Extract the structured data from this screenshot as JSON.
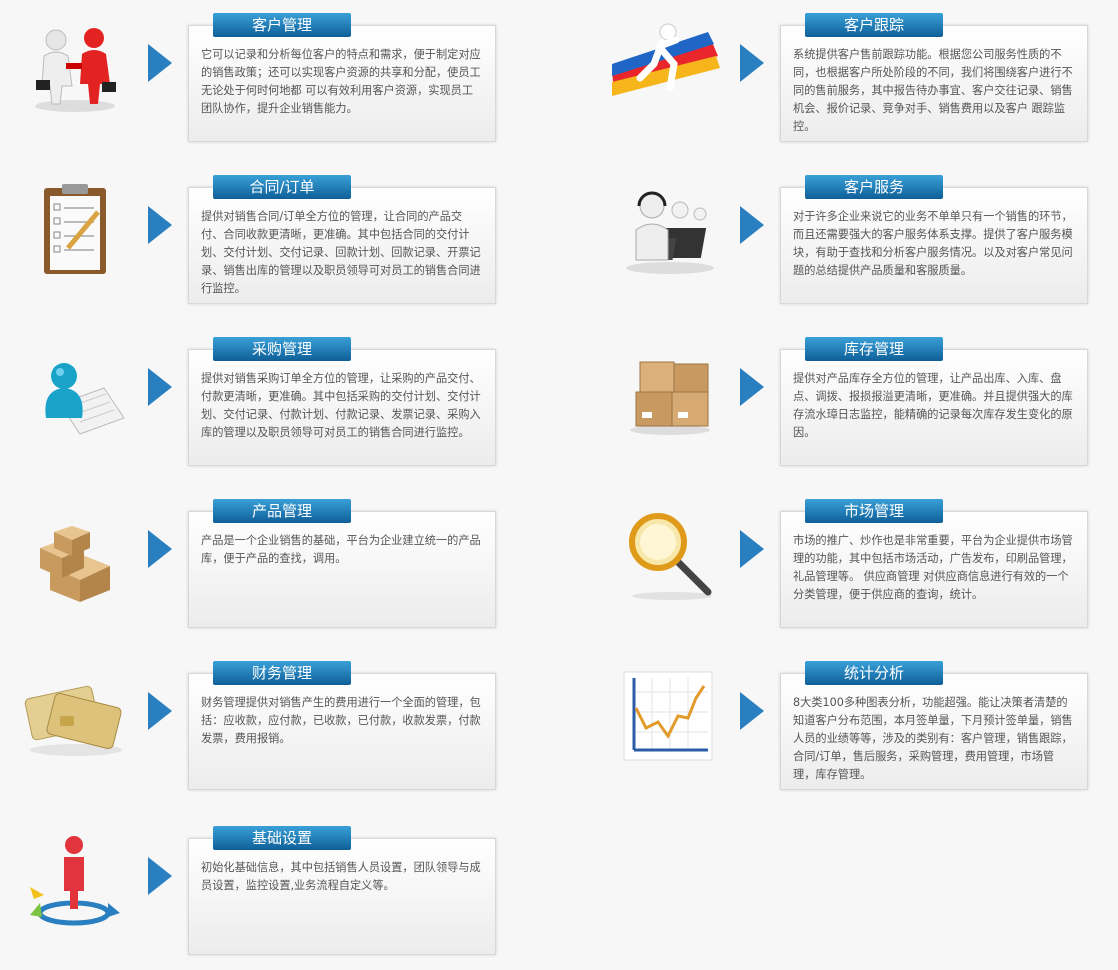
{
  "colors": {
    "accent": "#2a7fc0",
    "tab_top": "#3aa0d8",
    "tab_bottom": "#0f5f98",
    "text": "#555555"
  },
  "modules": [
    {
      "icon": "handshake-icon",
      "title": "客户管理",
      "desc": "它可以记录和分析每位客户的特点和需求，便于制定对应的销售政策；还可以实现客户资源的共享和分配，使员工无论处于何时何地都 可以有效利用客户资源，实现员工团队协作，提升企业销售能力。"
    },
    {
      "icon": "running-man-icon",
      "title": "客户跟踪",
      "desc": "系统提供客户售前跟踪功能。根据您公司服务性质的不同，也根据客户所处阶段的不同，我们将围绕客户进行不同的售前服务，其中报告待办事宜、客户交往记录、销售机会、报价记录、竞争对手、销售费用以及客户 跟踪监控。"
    },
    {
      "icon": "clipboard-icon",
      "title": "合同/订单",
      "desc": "提供对销售合同/订单全方位的管理，让合同的产品交付、合同收款更清晰，更准确。其中包括合同的交付计划、交付计划、交付记录、回款计划、回款记录、开票记录、销售出库的管理以及职员领导可对员工的销售合同进行监控。"
    },
    {
      "icon": "headset-service-icon",
      "title": "客户服务",
      "desc": "对于许多企业来说它的业务不单单只有一个销售的环节，而且还需要强大的客户服务体系支撑。提供了客户服务模块，有助于查找和分析客户服务情况。以及对客户常见问题的总结提供产品质量和客服质量。"
    },
    {
      "icon": "purchase-icon",
      "title": "采购管理",
      "desc": "提供对销售采购订单全方位的管理，让采购的产品交付、付款更清晰，更准确。其中包括采购的交付计划、交付计划、交付记录、付款计划、付款记录、发票记录、采购入库的管理以及职员领导可对员工的销售合同进行监控。"
    },
    {
      "icon": "inventory-boxes-icon",
      "title": "库存管理",
      "desc": "提供对产品库存全方位的管理，让产品出库、入库、盘点、调拨、报损报溢更清晰，更准确。并且提供强大的库存流水璋日志监控，能精确的记录每次库存发生变化的原因。"
    },
    {
      "icon": "product-boxes-icon",
      "title": "产品管理",
      "desc": "产品是一个企业销售的基础，平台为企业建立统一的产品库，便于产品的查找，调用。"
    },
    {
      "icon": "magnifier-icon",
      "title": "市场管理",
      "desc": "市场的推广、炒作也是非常重要，平台为企业提供市场管理的功能，其中包括市场活动，广告发布，印刷品管理，礼品管理等。 供应商管理 对供应商信息进行有效的一个分类管理，便于供应商的查询，统计。"
    },
    {
      "icon": "credit-cards-icon",
      "title": "财务管理",
      "desc": "财务管理提供对销售产生的费用进行一个全面的管理，包括：应收款，应付款，已收款，已付款，收款发票，付款发票，费用报销。"
    },
    {
      "icon": "line-chart-icon",
      "title": "统计分析",
      "desc": "8大类100多种图表分析，功能超强。能让决策者清楚的知道客户分布范围，本月签单量，下月预计签单量，销售人员的业绩等等，涉及的类别有：客户管理，销售跟踪，合同/订单，售后服务，采购管理，费用管理，市场管理，库存管理。"
    },
    {
      "icon": "settings-person-icon",
      "title": "基础设置",
      "desc": "初始化基础信息，其中包括销售人员设置，团队领导与成员设置，监控设置,业务流程自定义等。"
    }
  ]
}
